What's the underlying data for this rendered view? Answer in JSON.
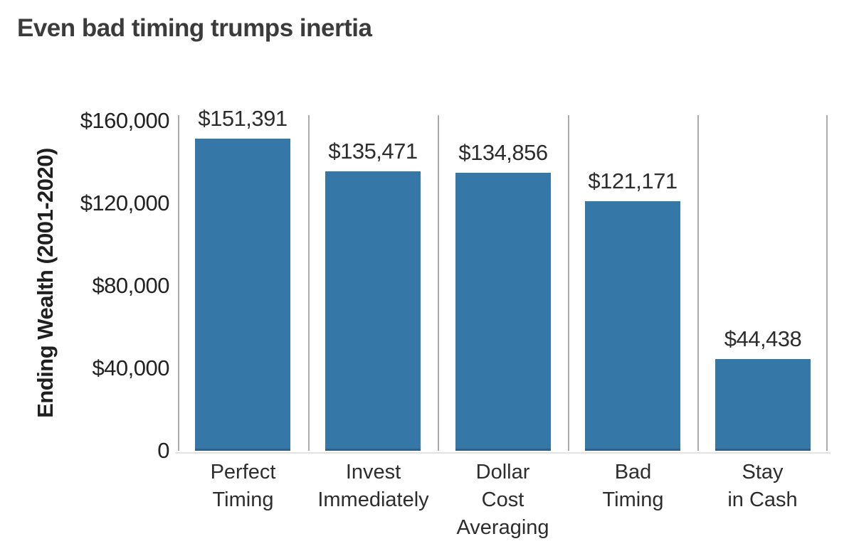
{
  "title": "Even bad timing trumps inertia",
  "chart_data": {
    "type": "bar",
    "title": "Even bad timing trumps inertia",
    "xlabel": "",
    "ylabel": "Ending Wealth (2001-2020)",
    "categories": [
      "Perfect\nTiming",
      "Invest\nImmediately",
      "Dollar\nCost\nAveraging",
      "Bad\nTiming",
      "Stay\nin Cash"
    ],
    "values": [
      151391,
      135471,
      134856,
      121171,
      44438
    ],
    "value_labels": [
      "$151,391",
      "$135,471",
      "$134,856",
      "$121,171",
      "$44,438"
    ],
    "y_ticks": {
      "values": [
        0,
        40000,
        80000,
        120000,
        160000
      ],
      "labels": [
        "0",
        "$40,000",
        "$80,000",
        "$120,000",
        "$160,000"
      ]
    },
    "ylim": [
      0,
      160000
    ],
    "grid": "vertical category separators only",
    "legend": "none",
    "colors": {
      "bar": "#3578a8",
      "bar_bottom_edge": "#2b618c",
      "gridline": "#ababab",
      "title_text": "#3b3b3b",
      "label_text": "#2d2d2d",
      "background": "#ffffff"
    }
  }
}
